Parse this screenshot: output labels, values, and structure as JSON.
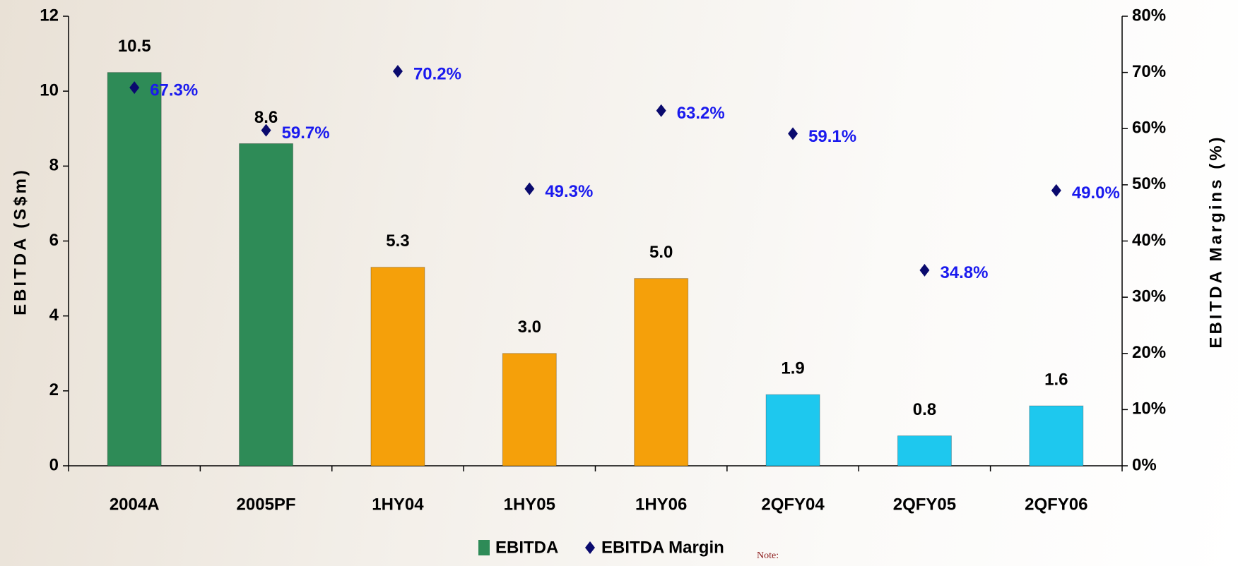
{
  "chart_data": {
    "type": "bar-line",
    "categories": [
      "2004A",
      "2005PF",
      "1HY04",
      "1HY05",
      "1HY06",
      "2QFY04",
      "2QFY05",
      "2QFY06"
    ],
    "y_label": "EBITDA (S$m)",
    "y2_label": "EBITDA Margins (%)",
    "ylim": [
      0,
      12
    ],
    "yticks": [
      0,
      2,
      4,
      6,
      8,
      10,
      12
    ],
    "y2lim": [
      0,
      80
    ],
    "y2ticks": [
      {
        "value": 0,
        "label": "0%"
      },
      {
        "value": 10,
        "label": "10%"
      },
      {
        "value": 20,
        "label": "20%"
      },
      {
        "value": 30,
        "label": "30%"
      },
      {
        "value": 40,
        "label": "40%"
      },
      {
        "value": 50,
        "label": "50%"
      },
      {
        "value": 60,
        "label": "60%"
      },
      {
        "value": 70,
        "label": "70%"
      },
      {
        "value": 80,
        "label": "80%"
      }
    ],
    "series": [
      {
        "name": "EBITDA",
        "type": "bar",
        "color": "#2e8b57",
        "colors": [
          "#2e8b57",
          "#2e8b57",
          "#f5a00a",
          "#f5a00a",
          "#f5a00a",
          "#1ec8ee",
          "#1ec8ee",
          "#1ec8ee"
        ],
        "values": [
          10.5,
          8.6,
          5.3,
          3.0,
          5.0,
          1.9,
          0.8,
          1.6
        ],
        "value_labels": [
          "10.5",
          "8.6",
          "5.3",
          "3.0",
          "5.0",
          "1.9",
          "0.8",
          "1.6"
        ]
      },
      {
        "name": "EBITDA Margin",
        "type": "scatter",
        "axis": "y2",
        "color": "#0a0a6e",
        "label_color": "#1a1aee",
        "values": [
          67.3,
          59.7,
          70.2,
          49.3,
          63.2,
          59.1,
          34.8,
          49.0
        ],
        "value_labels": [
          "67.3%",
          "59.7%",
          "70.2%",
          "49.3%",
          "63.2%",
          "59.1%",
          "34.8%",
          "49.0%"
        ]
      }
    ],
    "note": "Note:"
  }
}
